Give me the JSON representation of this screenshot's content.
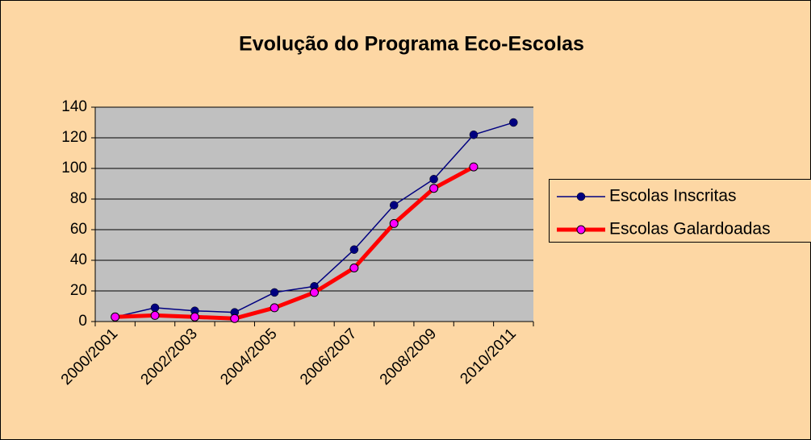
{
  "chart_data": {
    "type": "line",
    "title": "Evolução do Programa Eco-Escolas",
    "categories": [
      "2000/2001",
      null,
      "2002/2003",
      null,
      "2004/2005",
      null,
      "2006/2007",
      null,
      "2008/2009",
      null,
      "2010/2011"
    ],
    "series": [
      {
        "name": "Escolas Inscritas",
        "color": "#000080",
        "values": [
          3,
          9,
          7,
          6,
          19,
          23,
          47,
          76,
          93,
          122,
          130
        ]
      },
      {
        "name": "Escolas Galardoadas",
        "color": "#ff0000",
        "values": [
          3,
          4,
          3,
          2,
          9,
          19,
          35,
          64,
          87,
          101,
          null
        ]
      }
    ],
    "ylim": [
      0,
      140
    ],
    "yticks": [
      0,
      20,
      40,
      60,
      80,
      100,
      120,
      140
    ],
    "grid": true,
    "legend": "right"
  }
}
